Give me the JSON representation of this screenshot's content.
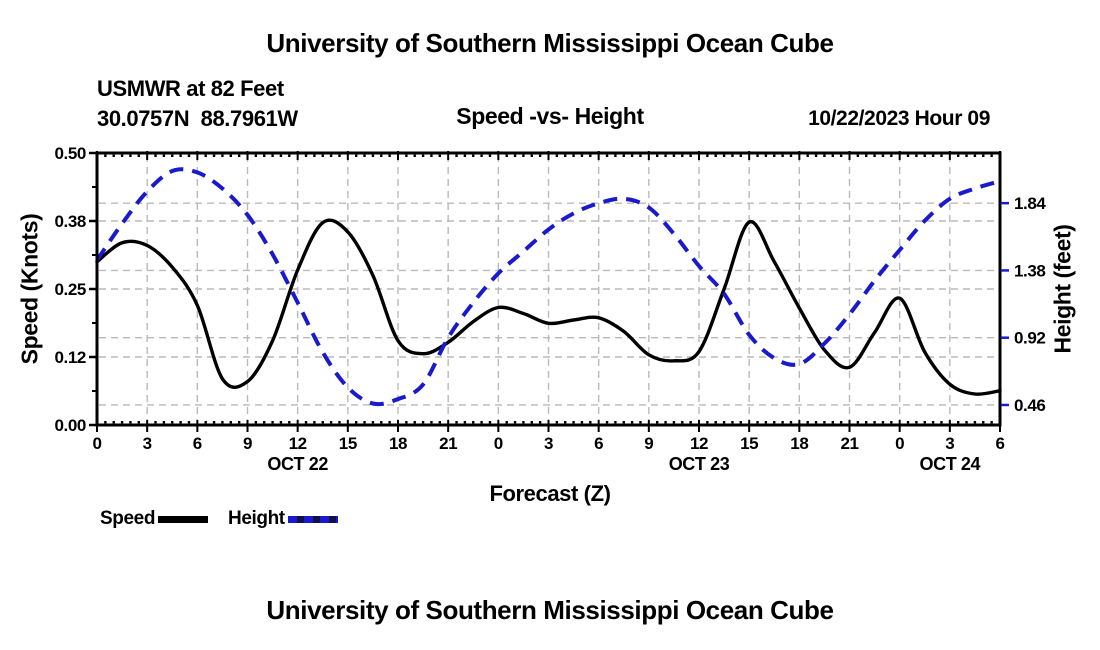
{
  "header": {
    "title": "University of Southern Mississippi Ocean Cube",
    "station": "USMWR at 82 Feet",
    "coordinates": "30.0757N  88.7961W",
    "chart_title": "Speed -vs- Height",
    "datetime": "10/22/2023 Hour 09"
  },
  "footer": {
    "title": "University of Southern Mississippi Ocean Cube"
  },
  "legend": {
    "entries": [
      {
        "label": "Speed",
        "color": "#000000",
        "style": "solid"
      },
      {
        "label": "Height",
        "color": "#1919CD",
        "style": "dashed"
      }
    ]
  },
  "chart_data": {
    "type": "line",
    "title": "Speed -vs- Height",
    "x_label": "Forecast (Z)",
    "x_hours": [
      0,
      1.5,
      3,
      4.5,
      6,
      7.5,
      9,
      10.5,
      12,
      13.5,
      15,
      16.5,
      18,
      19.5,
      21,
      22.5,
      24,
      25.5,
      27,
      28.5,
      30,
      31.5,
      33,
      34.5,
      36,
      37.5,
      39,
      40.5,
      42,
      43.5,
      45,
      46.5,
      48,
      49.5,
      51,
      52.5,
      54
    ],
    "series": [
      {
        "name": "Speed",
        "axis": "left",
        "color": "#000000",
        "line_style": "solid",
        "values": [
          0.3,
          0.335,
          0.33,
          0.29,
          0.22,
          0.085,
          0.08,
          0.155,
          0.285,
          0.372,
          0.355,
          0.275,
          0.155,
          0.131,
          0.152,
          0.19,
          0.216,
          0.205,
          0.187,
          0.193,
          0.197,
          0.172,
          0.129,
          0.118,
          0.135,
          0.25,
          0.373,
          0.3,
          0.215,
          0.138,
          0.106,
          0.17,
          0.233,
          0.134,
          0.075,
          0.057,
          0.063
        ]
      },
      {
        "name": "Height",
        "axis": "right",
        "color": "#1919CD",
        "line_style": "dashed",
        "values": [
          1.45,
          1.7,
          1.92,
          2.06,
          2.05,
          1.94,
          1.76,
          1.49,
          1.16,
          0.82,
          0.58,
          0.47,
          0.5,
          0.6,
          0.92,
          1.16,
          1.36,
          1.51,
          1.66,
          1.77,
          1.84,
          1.87,
          1.81,
          1.63,
          1.41,
          1.22,
          0.94,
          0.78,
          0.74,
          0.88,
          1.08,
          1.31,
          1.52,
          1.72,
          1.87,
          1.94,
          1.99
        ]
      }
    ],
    "x_axis": {
      "range_hours": [
        0,
        54
      ],
      "major_tick_step_hours": 3,
      "minor_tick_step_hours": 0.5,
      "tick_labels": [
        "0",
        "3",
        "6",
        "9",
        "12",
        "15",
        "18",
        "21",
        "0",
        "3",
        "6",
        "9",
        "12",
        "15",
        "18",
        "21",
        "0",
        "3",
        "6"
      ],
      "day_labels": [
        {
          "text": "OCT 22",
          "hour": 12
        },
        {
          "text": "OCT 23",
          "hour": 36
        },
        {
          "text": "OCT 24",
          "hour": 51
        }
      ]
    },
    "left_axis": {
      "label": "Speed (Knots)",
      "range": [
        0,
        0.5
      ],
      "ticks": [
        0,
        0.125,
        0.25,
        0.375,
        0.5
      ],
      "tick_labels": [
        "0.00",
        "0.12",
        "0.25",
        "0.38",
        "0.50"
      ],
      "minor_ticks": [
        0.0625,
        0.1875,
        0.3125,
        0.4375
      ]
    },
    "right_axis": {
      "label": "Height (feet)",
      "range": [
        0.323,
        2.183
      ],
      "ticks": [
        0.46,
        0.92,
        1.38,
        1.84
      ],
      "tick_labels": [
        "0.46",
        "0.92",
        "1.38",
        "1.84"
      ],
      "tick_color": "#1919CD"
    },
    "grid": {
      "color": "#b9b9b9",
      "dashed": true
    }
  }
}
